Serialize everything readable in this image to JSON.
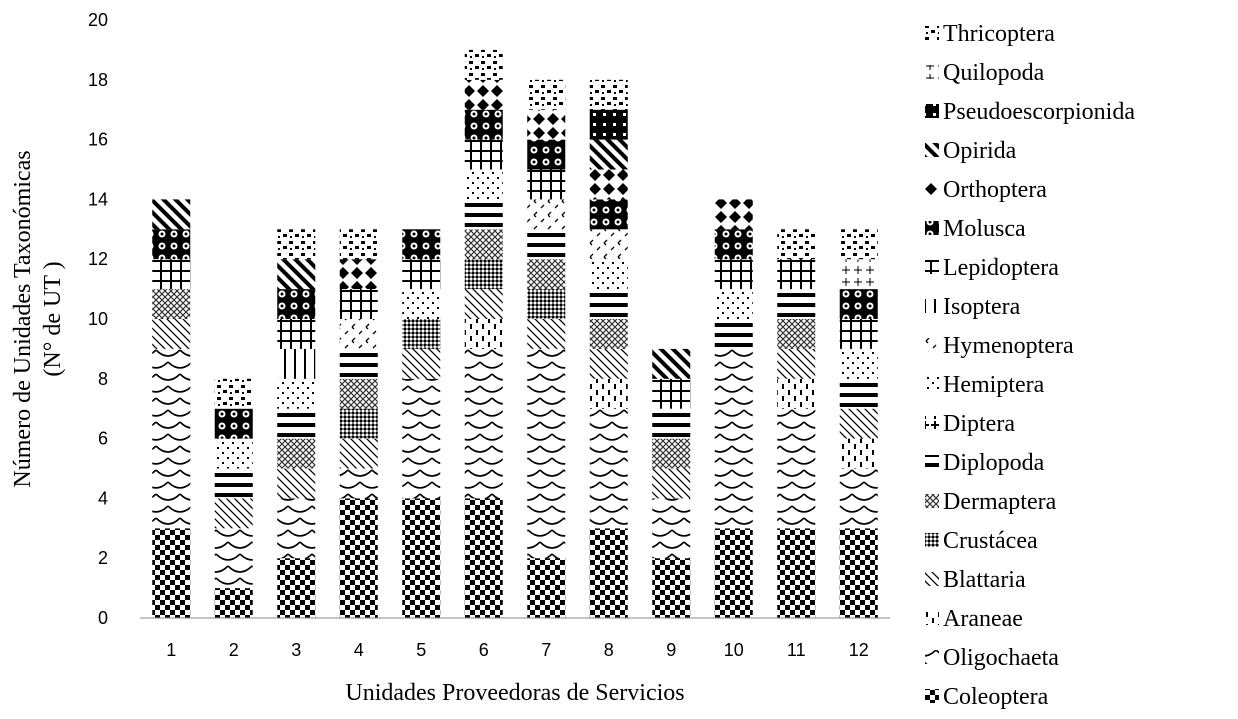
{
  "chart_data": {
    "type": "bar",
    "stacked": true,
    "xlabel": "Unidades Proveedoras de Servicios",
    "ylabel": [
      "Número de Unidades Taxonómicas",
      "(N° de UT )"
    ],
    "ylim": [
      0,
      20
    ],
    "yticks": [
      0,
      2,
      4,
      6,
      8,
      10,
      12,
      14,
      16,
      18,
      20
    ],
    "grid": false,
    "legend_position": "right",
    "categories": [
      "1",
      "2",
      "3",
      "4",
      "5",
      "6",
      "7",
      "8",
      "9",
      "10",
      "11",
      "12"
    ],
    "series": [
      {
        "name": "Coleoptera",
        "pattern": "check",
        "values": [
          3,
          1,
          2,
          4,
          4,
          4,
          2,
          3,
          2,
          3,
          3,
          3
        ]
      },
      {
        "name": "Oligochaeta",
        "pattern": "scallop",
        "values": [
          6,
          2,
          2,
          1,
          4,
          5,
          7,
          4,
          2,
          6,
          4,
          2
        ]
      },
      {
        "name": "Araneae",
        "pattern": "dash",
        "values": [
          0,
          0,
          0,
          0,
          0,
          1,
          0,
          1,
          0,
          0,
          1,
          1
        ]
      },
      {
        "name": "Blattaria",
        "pattern": "diag",
        "values": [
          1,
          1,
          1,
          1,
          1,
          1,
          1,
          1,
          1,
          0,
          1,
          1
        ]
      },
      {
        "name": "Crustácea",
        "pattern": "dense",
        "values": [
          0,
          0,
          0,
          1,
          1,
          1,
          1,
          0,
          0,
          0,
          0,
          0
        ]
      },
      {
        "name": "Dermaptera",
        "pattern": "cross",
        "values": [
          1,
          0,
          1,
          1,
          0,
          1,
          1,
          1,
          1,
          0,
          1,
          0
        ]
      },
      {
        "name": "Diplopoda",
        "pattern": "hbar",
        "values": [
          0,
          1,
          1,
          1,
          0,
          1,
          1,
          1,
          1,
          1,
          1,
          1
        ]
      },
      {
        "name": "Diptera",
        "pattern": "plus",
        "values": [
          0,
          0,
          0,
          0,
          0,
          0,
          0,
          0,
          0,
          0,
          0,
          0
        ]
      },
      {
        "name": "Hemiptera",
        "pattern": "dots",
        "values": [
          0,
          1,
          1,
          0,
          1,
          1,
          0,
          1,
          0,
          1,
          0,
          1
        ]
      },
      {
        "name": "Hymenoptera",
        "pattern": "hook",
        "values": [
          0,
          0,
          0,
          1,
          0,
          0,
          1,
          1,
          0,
          0,
          0,
          0
        ]
      },
      {
        "name": "Isoptera",
        "pattern": "vbar",
        "values": [
          0,
          0,
          1,
          0,
          0,
          0,
          0,
          0,
          0,
          0,
          0,
          0
        ]
      },
      {
        "name": "Lepidoptera",
        "pattern": "grid",
        "values": [
          1,
          0,
          1,
          1,
          1,
          1,
          1,
          0,
          1,
          1,
          1,
          1
        ]
      },
      {
        "name": "Molusca",
        "pattern": "circle",
        "values": [
          1,
          1,
          1,
          0,
          1,
          1,
          1,
          1,
          0,
          1,
          0,
          1
        ]
      },
      {
        "name": "Orthoptera",
        "pattern": "diamond",
        "values": [
          0,
          0,
          0,
          1,
          0,
          1,
          1,
          1,
          0,
          1,
          0,
          0
        ]
      },
      {
        "name": "Opirida",
        "pattern": "stripe",
        "values": [
          1,
          0,
          1,
          0,
          0,
          0,
          0,
          1,
          1,
          0,
          0,
          0
        ]
      },
      {
        "name": "Pseudoescorpionida",
        "pattern": "black",
        "values": [
          0,
          0,
          0,
          0,
          0,
          0,
          0,
          1,
          0,
          0,
          0,
          0
        ]
      },
      {
        "name": "Quilopoda",
        "pattern": "thinplus",
        "values": [
          0,
          0,
          0,
          0,
          0,
          0,
          0,
          0,
          0,
          0,
          0,
          1
        ]
      },
      {
        "name": "Thricoptera",
        "pattern": "spots",
        "values": [
          0,
          1,
          1,
          1,
          0,
          1,
          1,
          1,
          0,
          0,
          1,
          1
        ]
      }
    ],
    "legend_order": [
      "Thricoptera",
      "Quilopoda",
      "Pseudoescorpionida",
      "Opirida",
      "Orthoptera",
      "Molusca",
      "Lepidoptera",
      "Isoptera",
      "Hymenoptera",
      "Hemiptera",
      "Diptera",
      "Diplopoda",
      "Dermaptera",
      "Crustácea",
      "Blattaria",
      "Araneae",
      "Oligochaeta",
      "Coleoptera"
    ]
  }
}
